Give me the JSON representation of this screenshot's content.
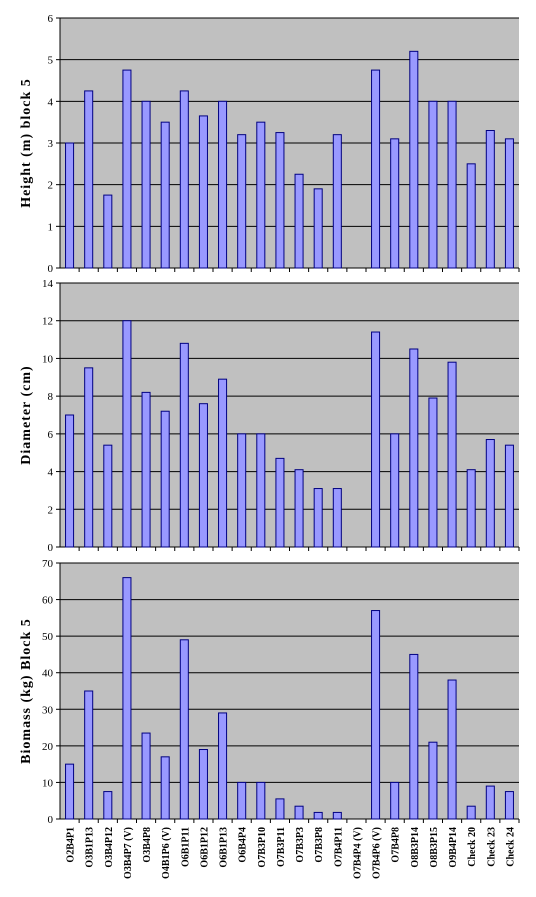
{
  "colors": {
    "plot_bg": "#c0c0c0",
    "bar_fill": "#9999ff",
    "bar_stroke": "#000080",
    "grid": "#000000"
  },
  "categories": [
    "O2B4P1",
    "O3B1P13",
    "O3B4P12",
    "O3B4P7 (V)",
    "O3B4P8",
    "O4B1P6 (V)",
    "O6B1P11",
    "O6B1P12",
    "O6B1P13",
    "O6B4P4",
    "O7B3P10",
    "O7B3P11",
    "O7B3P3",
    "O7B3P8",
    "O7B4P11",
    "O7B4P4 (V)",
    "O7B4P6 (V)",
    "O7B4P8",
    "O8B3P14",
    "O8B3P15",
    "O9B4P14",
    "Check 20",
    "Check 23",
    "Check 24"
  ],
  "chart_data": [
    {
      "type": "bar",
      "ylabel": "Height (m) block 5",
      "ylim": [
        0,
        6
      ],
      "yticks": [
        0,
        1,
        2,
        3,
        4,
        5,
        6
      ],
      "grid": true,
      "values": [
        3.0,
        4.25,
        1.75,
        4.75,
        4.0,
        3.5,
        4.25,
        3.65,
        4.0,
        3.2,
        3.5,
        3.25,
        2.25,
        1.9,
        3.2,
        null,
        4.75,
        3.1,
        5.2,
        4.0,
        4.0,
        2.5,
        3.3,
        3.1
      ]
    },
    {
      "type": "bar",
      "ylabel": "Diameter (cm)",
      "ylim": [
        0,
        14
      ],
      "yticks": [
        0,
        2,
        4,
        6,
        8,
        10,
        12,
        14
      ],
      "grid": true,
      "values": [
        7.0,
        9.5,
        5.4,
        12.0,
        8.2,
        7.2,
        10.8,
        7.6,
        8.9,
        6.0,
        6.0,
        4.7,
        4.1,
        3.1,
        3.1,
        null,
        11.4,
        6.0,
        10.5,
        7.9,
        9.8,
        4.1,
        5.7,
        5.4
      ]
    },
    {
      "type": "bar",
      "ylabel": "Biomass (kg) Block 5",
      "ylim": [
        0,
        70
      ],
      "yticks": [
        0,
        10,
        20,
        30,
        40,
        50,
        60,
        70
      ],
      "grid": true,
      "values": [
        15.0,
        35.0,
        7.5,
        66.0,
        23.5,
        17.0,
        49.0,
        19.0,
        29.0,
        10.0,
        10.0,
        5.5,
        3.5,
        1.8,
        1.8,
        null,
        57.0,
        10.0,
        45.0,
        21.0,
        38.0,
        3.5,
        9.0,
        7.5
      ]
    }
  ]
}
